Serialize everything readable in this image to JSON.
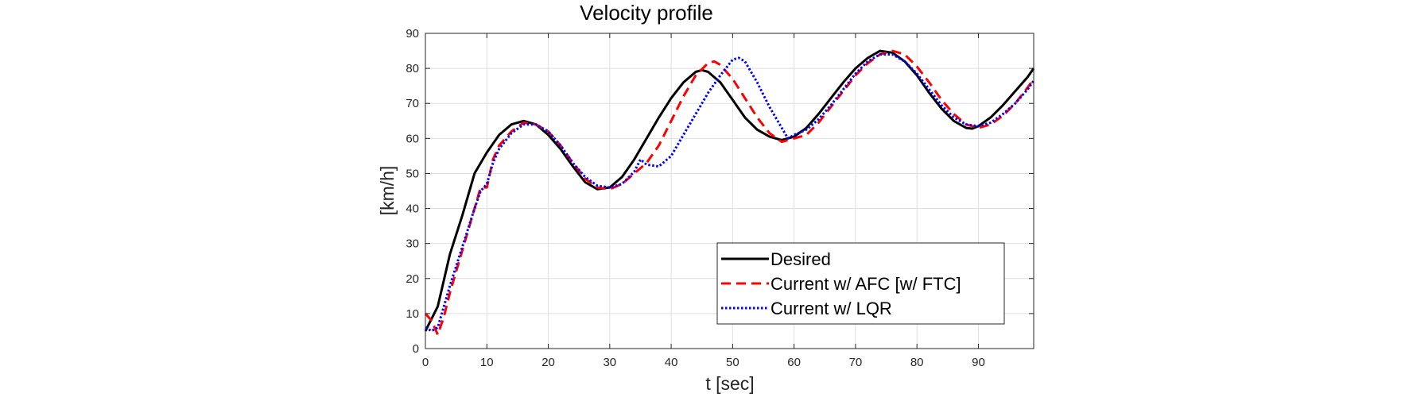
{
  "chart_data": {
    "type": "line",
    "title": "Velocity profile",
    "xlabel": "t [sec]",
    "ylabel": "[km/h]",
    "xlim": [
      0,
      99
    ],
    "ylim": [
      0,
      90
    ],
    "xticks": [
      0,
      10,
      20,
      30,
      40,
      50,
      60,
      70,
      80,
      90
    ],
    "yticks": [
      0,
      10,
      20,
      30,
      40,
      50,
      60,
      70,
      80,
      90
    ],
    "grid": true,
    "legend_position": "bottom-right",
    "series": [
      {
        "name": "Desired",
        "color": "#000000",
        "style": "solid",
        "points": [
          [
            0,
            5
          ],
          [
            2,
            12
          ],
          [
            4,
            27
          ],
          [
            6,
            38
          ],
          [
            8,
            50
          ],
          [
            10,
            56
          ],
          [
            12,
            61
          ],
          [
            14,
            64
          ],
          [
            16,
            65
          ],
          [
            18,
            64
          ],
          [
            20,
            61
          ],
          [
            22,
            57
          ],
          [
            24,
            52
          ],
          [
            26,
            47.5
          ],
          [
            28,
            45.5
          ],
          [
            30,
            46
          ],
          [
            32,
            49
          ],
          [
            34,
            54
          ],
          [
            36,
            60
          ],
          [
            38,
            66
          ],
          [
            40,
            71.5
          ],
          [
            42,
            76
          ],
          [
            44,
            79
          ],
          [
            45,
            79.5
          ],
          [
            46,
            79
          ],
          [
            48,
            76
          ],
          [
            50,
            71
          ],
          [
            52,
            66
          ],
          [
            54,
            62.5
          ],
          [
            56,
            60.5
          ],
          [
            58,
            59.5
          ],
          [
            60,
            60.5
          ],
          [
            62,
            63
          ],
          [
            64,
            67
          ],
          [
            66,
            71.5
          ],
          [
            68,
            76
          ],
          [
            70,
            80
          ],
          [
            72,
            83
          ],
          [
            74,
            85
          ],
          [
            76,
            84.5
          ],
          [
            78,
            82
          ],
          [
            80,
            78
          ],
          [
            82,
            73
          ],
          [
            84,
            68.5
          ],
          [
            86,
            65
          ],
          [
            88,
            63
          ],
          [
            89,
            62.8
          ],
          [
            90,
            63.5
          ],
          [
            92,
            66
          ],
          [
            94,
            69.5
          ],
          [
            96,
            73.5
          ],
          [
            98,
            77.5
          ],
          [
            99,
            80
          ]
        ]
      },
      {
        "name": "Current w/ AFC [w/ FTC]",
        "color": "#ff0000",
        "style": "dashed",
        "points": [
          [
            0,
            10
          ],
          [
            1,
            8
          ],
          [
            2,
            4
          ],
          [
            3,
            9
          ],
          [
            4,
            16
          ],
          [
            6,
            28
          ],
          [
            8,
            40
          ],
          [
            9,
            46
          ],
          [
            10,
            46
          ],
          [
            11,
            54
          ],
          [
            12,
            58
          ],
          [
            14,
            62
          ],
          [
            16,
            64.5
          ],
          [
            18,
            64
          ],
          [
            20,
            62
          ],
          [
            22,
            58
          ],
          [
            24,
            53
          ],
          [
            26,
            48.5
          ],
          [
            28,
            46
          ],
          [
            30,
            45.5
          ],
          [
            32,
            47
          ],
          [
            34,
            50
          ],
          [
            36,
            53
          ],
          [
            38,
            58
          ],
          [
            40,
            65
          ],
          [
            42,
            72
          ],
          [
            44,
            78
          ],
          [
            46,
            81.5
          ],
          [
            47,
            82
          ],
          [
            48,
            81
          ],
          [
            50,
            77
          ],
          [
            52,
            71.5
          ],
          [
            54,
            66
          ],
          [
            56,
            61.5
          ],
          [
            58,
            59
          ],
          [
            60,
            60
          ],
          [
            62,
            61
          ],
          [
            64,
            64.5
          ],
          [
            66,
            69
          ],
          [
            68,
            73.5
          ],
          [
            70,
            78
          ],
          [
            72,
            81.5
          ],
          [
            74,
            84
          ],
          [
            76,
            85
          ],
          [
            78,
            84
          ],
          [
            80,
            80.5
          ],
          [
            82,
            76
          ],
          [
            84,
            71
          ],
          [
            86,
            67
          ],
          [
            88,
            64
          ],
          [
            90,
            63
          ],
          [
            92,
            64
          ],
          [
            94,
            66.5
          ],
          [
            96,
            70
          ],
          [
            98,
            74.5
          ],
          [
            99,
            77
          ]
        ]
      },
      {
        "name": "Current w/ LQR",
        "color": "#0000ff",
        "style": "dotted",
        "points": [
          [
            0,
            6
          ],
          [
            1,
            5
          ],
          [
            2,
            6
          ],
          [
            3,
            12
          ],
          [
            4,
            18
          ],
          [
            6,
            29
          ],
          [
            8,
            40
          ],
          [
            9,
            45
          ],
          [
            10,
            47
          ],
          [
            11,
            53
          ],
          [
            12,
            57
          ],
          [
            14,
            61.5
          ],
          [
            16,
            64
          ],
          [
            18,
            64
          ],
          [
            20,
            62
          ],
          [
            22,
            58
          ],
          [
            24,
            53
          ],
          [
            26,
            49
          ],
          [
            28,
            46.5
          ],
          [
            30,
            46
          ],
          [
            32,
            47
          ],
          [
            34,
            50.5
          ],
          [
            35,
            54
          ],
          [
            36,
            52.5
          ],
          [
            38,
            52
          ],
          [
            40,
            55
          ],
          [
            42,
            61
          ],
          [
            44,
            67
          ],
          [
            46,
            73
          ],
          [
            48,
            78
          ],
          [
            50,
            82.5
          ],
          [
            51,
            83
          ],
          [
            52,
            82
          ],
          [
            54,
            76
          ],
          [
            56,
            69
          ],
          [
            58,
            63
          ],
          [
            59,
            60
          ],
          [
            60,
            61
          ],
          [
            62,
            62.5
          ],
          [
            64,
            65.5
          ],
          [
            66,
            69.5
          ],
          [
            68,
            74
          ],
          [
            70,
            78.5
          ],
          [
            72,
            82
          ],
          [
            74,
            84
          ],
          [
            76,
            84
          ],
          [
            78,
            82
          ],
          [
            80,
            78.5
          ],
          [
            82,
            74
          ],
          [
            84,
            69.5
          ],
          [
            86,
            66
          ],
          [
            88,
            64
          ],
          [
            90,
            63.5
          ],
          [
            92,
            64.5
          ],
          [
            94,
            67
          ],
          [
            96,
            70
          ],
          [
            98,
            74
          ],
          [
            99,
            76.5
          ]
        ]
      }
    ]
  }
}
